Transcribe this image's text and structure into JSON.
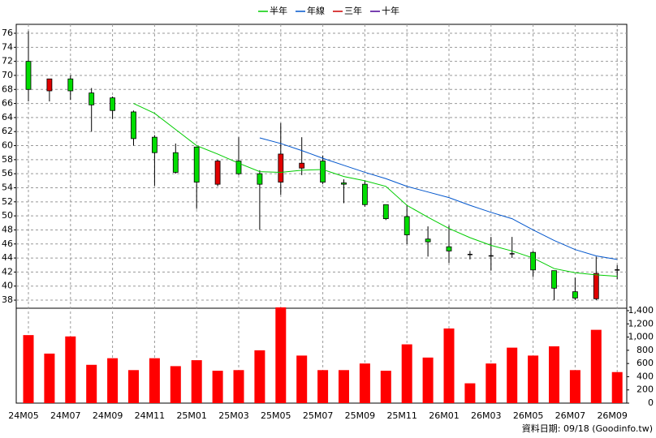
{
  "chart_data": [
    {
      "type": "candlestick",
      "categories": [
        "24M05",
        null,
        "24M07",
        null,
        "24M09",
        null,
        "24M11",
        null,
        "25M01",
        null,
        "25M03",
        null,
        "25M05",
        null,
        "25M07",
        null,
        "25M09",
        null,
        "25M11",
        null,
        "26M01",
        null,
        "26M03",
        null,
        "26M05",
        null,
        "26M07",
        null,
        "26M09"
      ],
      "open": [
        72,
        67.8,
        69.5,
        67.5,
        66.8,
        64.8,
        61.2,
        59,
        59.8,
        54.5,
        57.8,
        56,
        54.8,
        56.8,
        57.8,
        54.7,
        54.5,
        51.6,
        49.9,
        46.7,
        45.6,
        44.5,
        44.3,
        44.6,
        44.8,
        42.2,
        39.2,
        38.2,
        42.3
      ],
      "high": [
        76.3,
        69.5,
        70,
        68.2,
        67,
        65,
        61.5,
        60.3,
        59.8,
        58,
        61.2,
        56.5,
        63.2,
        61.2,
        58.6,
        55.2,
        55,
        51.6,
        51.5,
        48.5,
        48.6,
        45,
        47,
        47,
        45,
        42.2,
        41.2,
        44.2,
        43
      ],
      "low": [
        66.3,
        66.3,
        66.5,
        62,
        63.8,
        60,
        54.3,
        56,
        51,
        54.2,
        55.8,
        48,
        53,
        55.8,
        54.5,
        51.8,
        51.3,
        49.4,
        46,
        44.2,
        43.3,
        43.8,
        42.2,
        44,
        41.3,
        38,
        38,
        38,
        41
      ],
      "close": [
        68,
        69.5,
        67.8,
        65.8,
        65,
        61,
        59,
        56.2,
        54.8,
        57.8,
        56,
        54.5,
        58.8,
        57.5,
        54.8,
        54.5,
        51.6,
        49.6,
        47.3,
        46.3,
        45,
        44.5,
        44.3,
        44.6,
        42.3,
        39.7,
        38.3,
        41.8,
        42.3
      ],
      "up_color": "#e00000",
      "down_color": "#00dd00",
      "flat_color": "#000000",
      "series": [
        {
          "name": "半年",
          "color": "#00cc00",
          "values": [
            null,
            null,
            null,
            null,
            null,
            66,
            64.6,
            62.3,
            60,
            58.8,
            57.5,
            56.3,
            56.2,
            56.5,
            56.6,
            55.6,
            55,
            54.2,
            51.5,
            49.8,
            48.2,
            46.9,
            45.8,
            45,
            44,
            42.5,
            41.9,
            41.6,
            41.4
          ]
        },
        {
          "name": "年線",
          "color": "#0055cc",
          "values": [
            null,
            null,
            null,
            null,
            null,
            null,
            null,
            null,
            null,
            null,
            null,
            61.1,
            60.3,
            59.3,
            58.2,
            57.2,
            56.2,
            55.3,
            54.2,
            53.4,
            52.6,
            51.5,
            50.5,
            49.6,
            48,
            46.5,
            45.2,
            44.3,
            43.8
          ]
        },
        {
          "name": "三年",
          "color": "#cc0000",
          "values": [
            null,
            null,
            null,
            null,
            null,
            null,
            null,
            null,
            null,
            null,
            null,
            null,
            null,
            null,
            null,
            null,
            null,
            null,
            null,
            null,
            null,
            null,
            null,
            null,
            null,
            null,
            null,
            null,
            null
          ]
        },
        {
          "name": "十年",
          "color": "#4b0096",
          "values": [
            null,
            null,
            null,
            null,
            null,
            null,
            null,
            null,
            null,
            null,
            null,
            null,
            null,
            null,
            null,
            null,
            null,
            null,
            null,
            null,
            null,
            null,
            null,
            null,
            null,
            null,
            null,
            null,
            null
          ]
        }
      ],
      "ylim": [
        36.85,
        77.27
      ],
      "yticks": [
        38,
        40,
        42,
        44,
        46,
        48,
        50,
        52,
        54,
        56,
        58,
        60,
        62,
        64,
        66,
        68,
        70,
        72,
        74,
        76
      ],
      "grid": true,
      "legend": "top"
    },
    {
      "type": "bar",
      "values": [
        1030,
        750,
        1010,
        580,
        680,
        500,
        680,
        560,
        650,
        490,
        500,
        800,
        1450,
        720,
        500,
        500,
        600,
        490,
        890,
        690,
        1130,
        300,
        600,
        840,
        720,
        860,
        500,
        1110,
        470
      ],
      "color": "#ff0000",
      "ylim": [
        0,
        1437
      ],
      "yticks": [
        0,
        200,
        400,
        600,
        800,
        {
          "value": 1000,
          "label": "1,000"
        },
        {
          "value": 1200,
          "label": "1,200"
        },
        {
          "value": 1400,
          "label": "1,400"
        }
      ],
      "grid": false,
      "annotation": "資料日期: 09/18 (Goodinfo.tw)"
    }
  ]
}
